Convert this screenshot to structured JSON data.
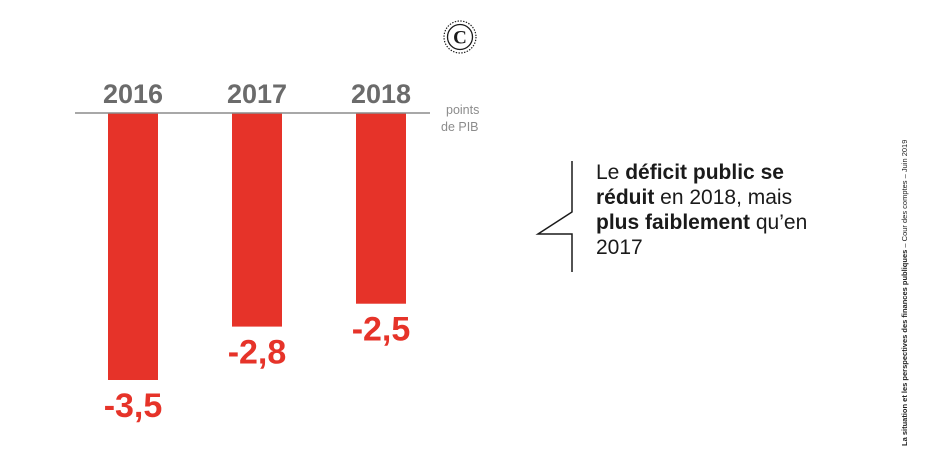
{
  "logo": {
    "letter": "C",
    "icon": "cour-des-comptes-seal-icon"
  },
  "chart_data": {
    "type": "bar",
    "categories": [
      "2016",
      "2017",
      "2018"
    ],
    "values": [
      -3.5,
      -2.8,
      -2.5
    ],
    "value_labels": [
      "-3,5",
      "-2,8",
      "-2,5"
    ],
    "unit_label_line1": "points",
    "unit_label_line2": "de PIB",
    "ylim": [
      -3.5,
      0
    ],
    "grid": false,
    "legend": "none"
  },
  "callout": {
    "p1": "Le ",
    "b1": "déficit public",
    "p2": " ",
    "b2": "se réduit",
    "p3": " en 2018, mais ",
    "b3": "plus faiblement",
    "p4": " qu’en 2017"
  },
  "side_note": {
    "bold": "La situation et les perspectives des finances publiques",
    "regular": " – Cour des comptes – Juin 2019"
  },
  "colors": {
    "bar": "#e63329",
    "axis": "#8c8c8c",
    "year_label": "#6b6b6b",
    "value_label": "#e63329",
    "unit_label": "#8c8c8c",
    "callout_line": "#1a1a1a"
  }
}
